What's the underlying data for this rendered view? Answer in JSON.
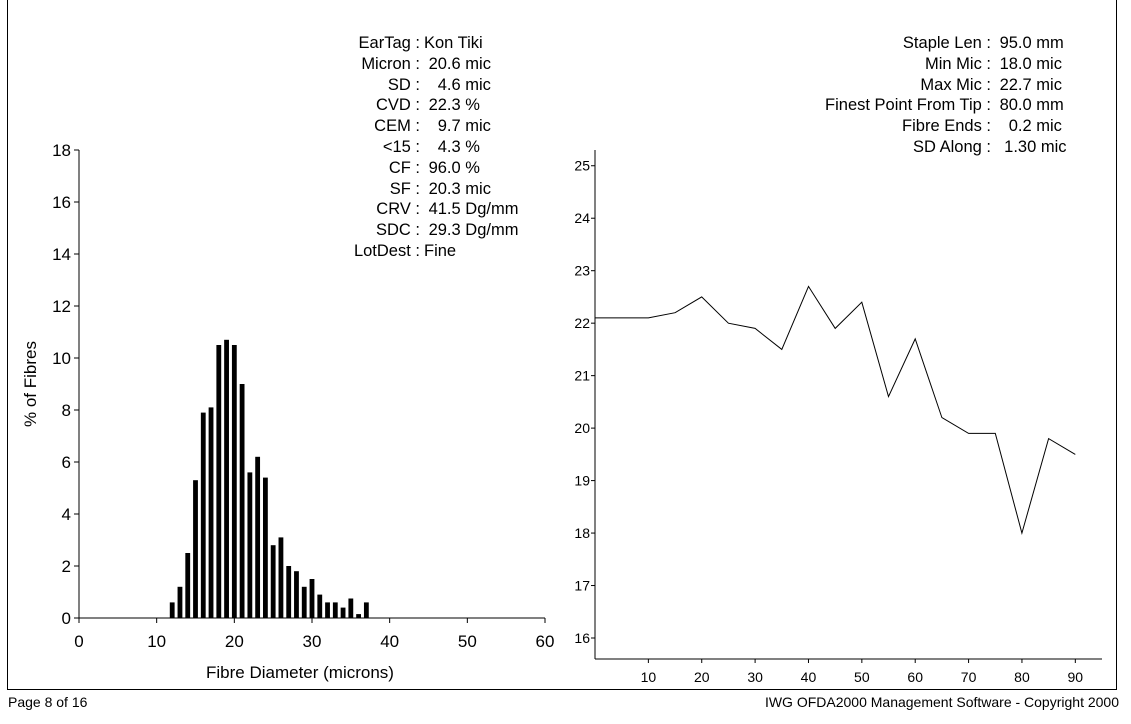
{
  "stats_left": [
    {
      "label": "EarTag :",
      "value": "Kon Tiki"
    },
    {
      "label": "Micron :",
      "value": " 20.6 mic"
    },
    {
      "label": "SD :",
      "value": "   4.6 mic"
    },
    {
      "label": "CVD :",
      "value": " 22.3 %"
    },
    {
      "label": "CEM :",
      "value": "   9.7 mic"
    },
    {
      "label": "<15 :",
      "value": "   4.3 %"
    },
    {
      "label": "CF :",
      "value": " 96.0 %"
    },
    {
      "label": "SF :",
      "value": " 20.3 mic"
    },
    {
      "label": "CRV :",
      "value": " 41.5 Dg/mm"
    },
    {
      "label": "SDC :",
      "value": " 29.3 Dg/mm"
    },
    {
      "label": "LotDest :",
      "value": "Fine"
    }
  ],
  "stats_right": [
    {
      "label": "Staple Len :",
      "value": " 95.0 mm"
    },
    {
      "label": "Min Mic :",
      "value": " 18.0 mic"
    },
    {
      "label": "Max Mic :",
      "value": " 22.7 mic"
    },
    {
      "label": "Finest Point From Tip :",
      "value": " 80.0 mm"
    },
    {
      "label": "Fibre Ends :",
      "value": "   0.2 mic"
    },
    {
      "label": "SD Along :",
      "value": "  1.30 mic"
    }
  ],
  "footer": {
    "left": "Page 8 of 16",
    "right": "IWG OFDA2000 Management Software - Copyright 2000"
  },
  "chart_data": [
    {
      "type": "bar",
      "title": "",
      "xlabel": "Fibre Diameter (microns)",
      "ylabel": "% of Fibres",
      "xlim": [
        0,
        60
      ],
      "ylim": [
        0,
        18
      ],
      "xticks": [
        0,
        10,
        20,
        30,
        40,
        50,
        60
      ],
      "yticks": [
        0,
        2,
        4,
        6,
        8,
        10,
        12,
        14,
        16,
        18
      ],
      "x": [
        12,
        13,
        14,
        15,
        16,
        17,
        18,
        19,
        20,
        21,
        22,
        23,
        24,
        25,
        26,
        27,
        28,
        29,
        30,
        31,
        32,
        33,
        34,
        35,
        36,
        37
      ],
      "values": [
        0.6,
        1.2,
        2.5,
        5.3,
        7.9,
        8.1,
        10.5,
        10.7,
        10.5,
        9.0,
        5.6,
        6.2,
        5.4,
        2.8,
        3.1,
        2.0,
        1.8,
        1.2,
        1.5,
        0.9,
        0.6,
        0.6,
        0.4,
        0.75,
        0.15,
        0.6
      ]
    },
    {
      "type": "line",
      "title": "",
      "xlabel": "",
      "ylabel": "",
      "xlim": [
        0,
        95
      ],
      "ylim": [
        15.6,
        25.3
      ],
      "xticks": [
        10,
        20,
        30,
        40,
        50,
        60,
        70,
        80,
        90
      ],
      "yticks": [
        16,
        17,
        18,
        19,
        20,
        21,
        22,
        23,
        24,
        25
      ],
      "x": [
        0,
        5,
        10,
        15,
        20,
        25,
        30,
        35,
        40,
        45,
        50,
        55,
        60,
        65,
        70,
        75,
        80,
        85,
        90
      ],
      "values": [
        22.1,
        22.1,
        22.1,
        22.2,
        22.5,
        22.0,
        21.9,
        21.5,
        22.7,
        21.9,
        22.4,
        20.6,
        21.7,
        20.2,
        19.9,
        19.9,
        18.0,
        19.8,
        19.5
      ]
    }
  ]
}
